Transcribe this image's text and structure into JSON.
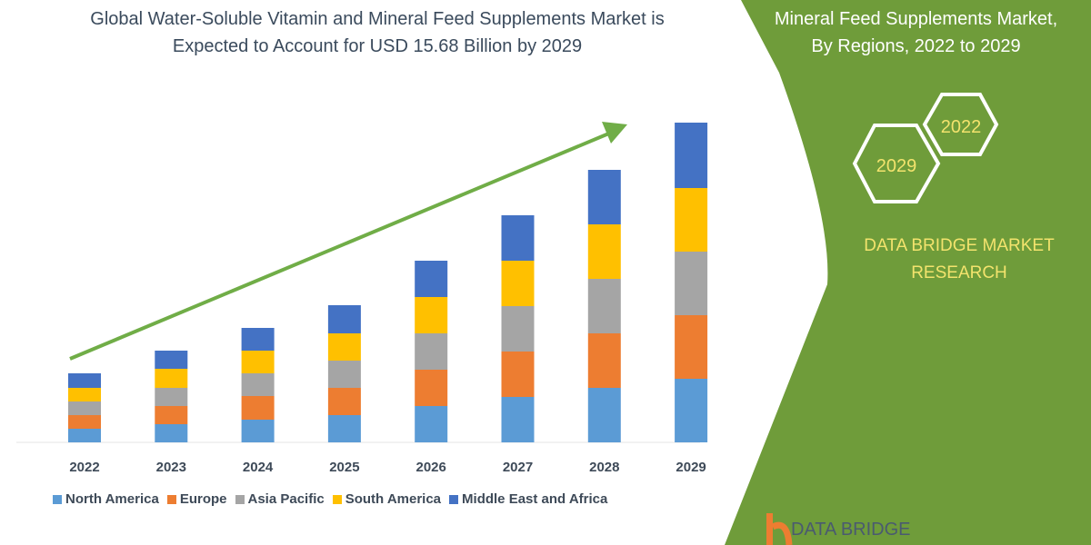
{
  "header": {
    "title_line1": "Global Water-Soluble Vitamin and Mineral Feed Supplements Market is",
    "title_line2": "Expected to Account for USD 15.68  Billion by 2029"
  },
  "side_panel": {
    "title_line1": "Mineral Feed Supplements Market,",
    "title_line2": "By Regions, 2022 to 2029",
    "hex_1": "2022",
    "hex_2": "2029",
    "brand_line1": "DATA BRIDGE MARKET",
    "brand_line2": "RESEARCH",
    "logo_text": "DATA BRIDGE",
    "panel_color": "#6f9c3a",
    "text_color": "#f3e36d"
  },
  "chart_data": {
    "type": "bar",
    "stacked": true,
    "grid": false,
    "legend_placement": "bottom",
    "trend_arrow": true,
    "title": "",
    "xlabel": "",
    "ylabel": "",
    "categories": [
      "2022",
      "2023",
      "2024",
      "2025",
      "2026",
      "2027",
      "2028",
      "2029"
    ],
    "series": [
      {
        "name": "North America",
        "color": "#5b9bd5",
        "values": [
          1.5,
          2.0,
          2.5,
          3.0,
          4.0,
          5.0,
          6.0,
          7.0
        ]
      },
      {
        "name": "Europe",
        "color": "#ed7d31",
        "values": [
          1.5,
          2.0,
          2.6,
          3.0,
          4.0,
          5.0,
          6.0,
          7.0
        ]
      },
      {
        "name": "Asia Pacific",
        "color": "#a5a5a5",
        "values": [
          1.5,
          2.0,
          2.5,
          3.0,
          4.0,
          5.0,
          6.0,
          7.0
        ]
      },
      {
        "name": "South America",
        "color": "#ffc000",
        "values": [
          1.5,
          2.1,
          2.5,
          3.0,
          4.0,
          5.0,
          6.0,
          7.0
        ]
      },
      {
        "name": "Middle East and Africa",
        "color": "#4472c4",
        "values": [
          1.6,
          2.0,
          2.5,
          3.1,
          4.0,
          5.0,
          6.0,
          7.2
        ]
      }
    ],
    "arrow_color": "#70ad47"
  }
}
